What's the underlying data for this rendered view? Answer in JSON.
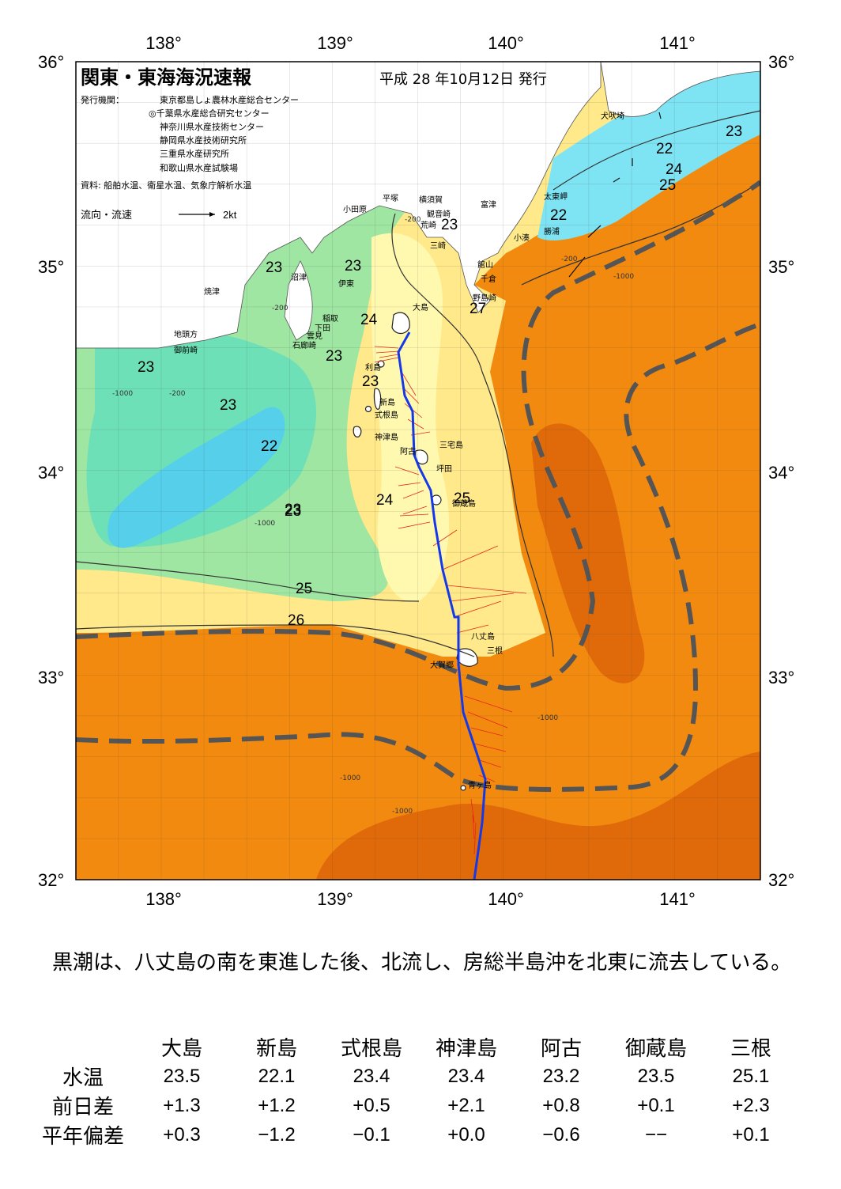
{
  "map": {
    "title": "関東・東海海況速報",
    "date": "平成 28 年10月12日 発行",
    "issuer_label": "発行機関：",
    "issuers": [
      "東京都島しょ農林水産総合センター",
      "◎千葉県水産総合研究センター",
      "神奈川県水産技術センター",
      "静岡県水産技術研究所",
      "三重県水産研究所",
      "和歌山県水産試験場"
    ],
    "source": "資料: 船舶水温、衛星水温、気象庁解析水温",
    "flow_legend": "流向・流速",
    "flow_scale": "2kt",
    "lon_labels": [
      "138°",
      "139°",
      "140°",
      "141°"
    ],
    "lat_labels": [
      "36°",
      "35°",
      "34°",
      "33°",
      "32°"
    ],
    "place_names": [
      "犬吠埼",
      "太東岬",
      "勝浦",
      "小湊",
      "富津",
      "横須賀",
      "観音崎",
      "荒崎",
      "平塚",
      "三崎",
      "小田原",
      "館山",
      "千倉",
      "野島崎",
      "沼津",
      "伊東",
      "焼津",
      "稲取",
      "下田",
      "雲見",
      "石廊崎",
      "地頭方",
      "御前崎",
      "大島",
      "利島",
      "新島",
      "式根島",
      "神津島",
      "三宅島",
      "阿古",
      "坪田",
      "御蔵島",
      "八丈島",
      "三根",
      "大賀郷",
      "青ヶ島"
    ],
    "temp_labels": [
      "23",
      "22",
      "24",
      "25",
      "22",
      "23",
      "23",
      "23",
      "23",
      "24",
      "23",
      "23",
      "27",
      "23",
      "23",
      "22",
      "23",
      "24",
      "25",
      "25",
      "26"
    ],
    "depth_labels": [
      "-200",
      "-1000"
    ]
  },
  "summary": "黒潮は、八丈島の南を東進した後、北流し、房総半島沖を北東に流去している。",
  "stations": {
    "headers": [
      "大島",
      "新島",
      "式根島",
      "神津島",
      "阿古",
      "御蔵島",
      "三根"
    ],
    "rows": [
      {
        "label": "水温",
        "values": [
          "23.5",
          "22.1",
          "23.4",
          "23.4",
          "23.2",
          "23.5",
          "25.1"
        ]
      },
      {
        "label": "前日差",
        "values": [
          "+1.3",
          "+1.2",
          "+0.5",
          "+2.1",
          "+0.8",
          "+0.1",
          "+2.3"
        ]
      },
      {
        "label": "平年偏差",
        "values": [
          "+0.3",
          "−1.2",
          "−0.1",
          "+0.0",
          "−0.6",
          "−−",
          "+0.1"
        ]
      }
    ]
  },
  "colors": {
    "warm": "#F28A10",
    "warmer": "#E06A0A",
    "yellow": "#FFE98A",
    "lightyellow": "#FFF9B0",
    "green": "#9FE6A2",
    "teal": "#6DE0B8",
    "cyan": "#7EE3F2",
    "deep": "#55CFEA",
    "route": "#1538E8",
    "arrows": "#E8261A",
    "axis": "#2E6FDB"
  }
}
